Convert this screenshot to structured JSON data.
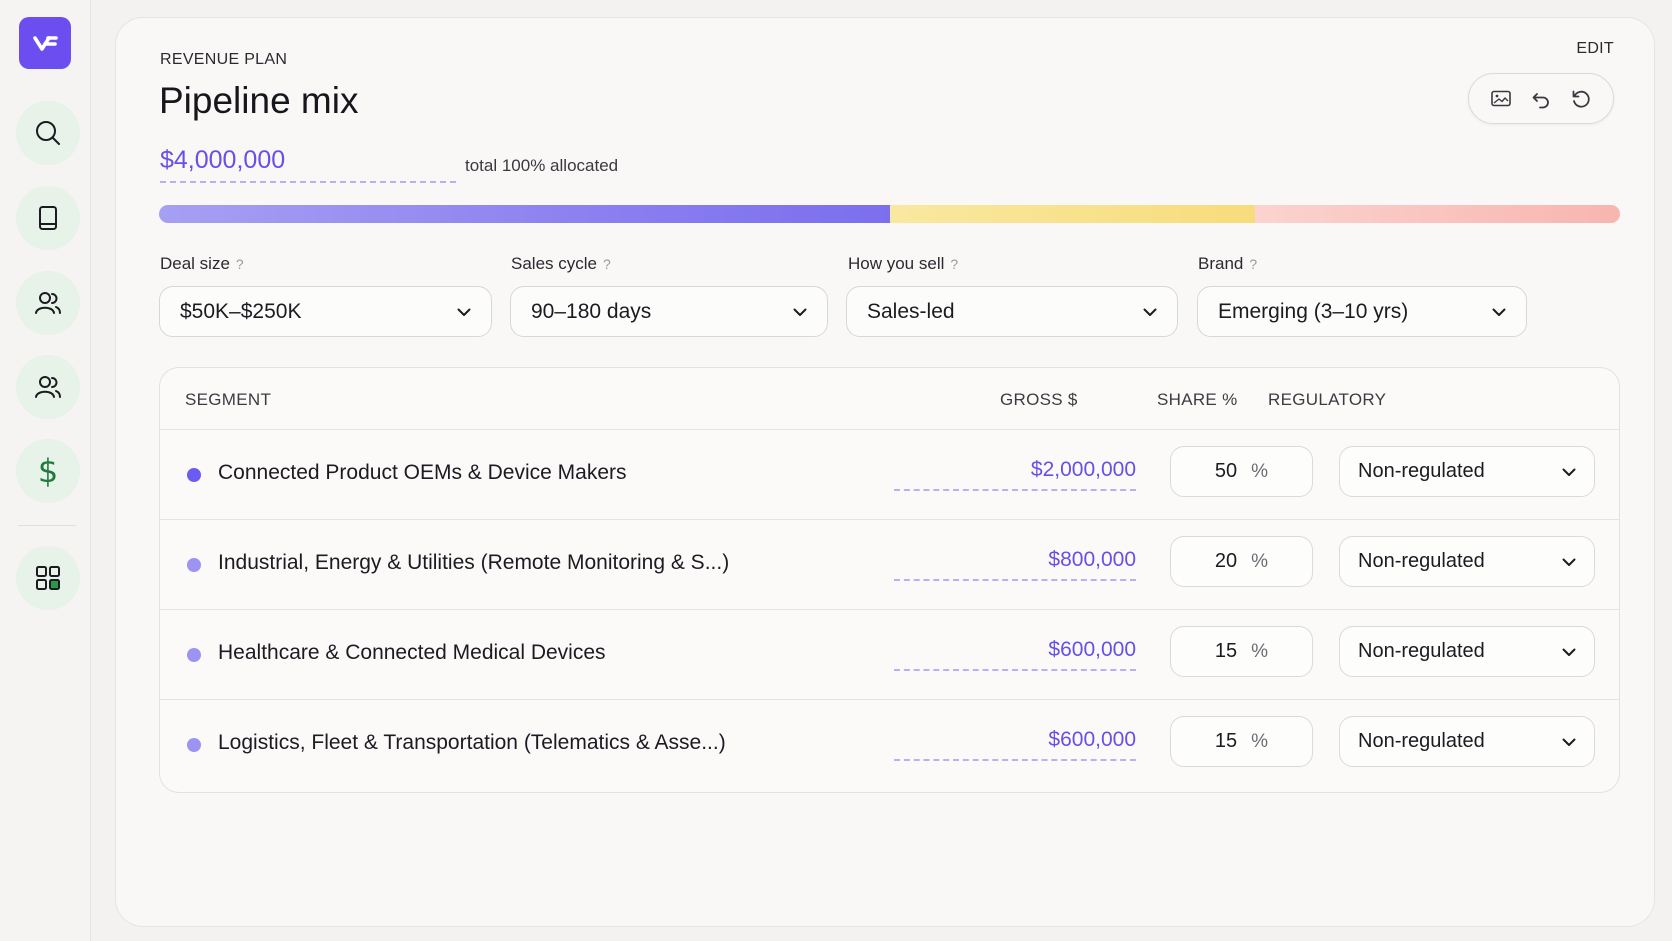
{
  "sidebar": {
    "logo_icon": "brand-logo-icon",
    "items": [
      {
        "name": "search",
        "icon": "search-icon"
      },
      {
        "name": "library",
        "icon": "book-icon"
      },
      {
        "name": "people",
        "icon": "users-icon"
      },
      {
        "name": "team",
        "icon": "users-icon"
      },
      {
        "name": "revenue",
        "icon": "dollar-icon",
        "glyph": "$"
      },
      {
        "name": "apps",
        "icon": "grid-icon"
      }
    ]
  },
  "header": {
    "eyebrow": "REVENUE PLAN",
    "title": "Pipeline mix",
    "edit_label": "EDIT"
  },
  "toolbar": {
    "items": [
      "image-icon",
      "undo-icon",
      "reset-icon"
    ]
  },
  "summary": {
    "total": "$4,000,000",
    "note": "total 100% allocated"
  },
  "allocation_bar": {
    "segments": [
      {
        "share": 0.5,
        "color": "#7b6fee"
      },
      {
        "share": 0.25,
        "color": "#f8dc7c"
      },
      {
        "share": 0.25,
        "color": "#f8b5b0"
      }
    ]
  },
  "filters": [
    {
      "label": "Deal size",
      "hint": "?",
      "value": "$50K–$250K"
    },
    {
      "label": "Sales cycle",
      "hint": "?",
      "value": "90–180 days"
    },
    {
      "label": "How you sell",
      "hint": "?",
      "value": "Sales-led"
    },
    {
      "label": "Brand",
      "hint": "?",
      "value": "Emerging (3–10 yrs)"
    }
  ],
  "table": {
    "headers": {
      "segment": "SEGMENT",
      "gross": "GROSS $",
      "share": "SHARE %",
      "regulatory": "REGULATORY"
    },
    "share_unit": "%",
    "rows": [
      {
        "segment": "Connected Product OEMs & Device Makers",
        "gross": "$2,000,000",
        "share": "50",
        "regulatory": "Non-regulated",
        "dot_color": "#6a5cf0"
      },
      {
        "segment": "Industrial, Energy & Utilities (Remote Monitoring & S...)",
        "gross": "$800,000",
        "share": "20",
        "regulatory": "Non-regulated",
        "dot_color": "#9d93f3"
      },
      {
        "segment": "Healthcare & Connected Medical Devices",
        "gross": "$600,000",
        "share": "15",
        "regulatory": "Non-regulated",
        "dot_color": "#9d93f3"
      },
      {
        "segment": "Logistics, Fleet & Transportation (Telematics & Asse...)",
        "gross": "$600,000",
        "share": "15",
        "regulatory": "Non-regulated",
        "dot_color": "#9d93f3"
      }
    ]
  },
  "colors": {
    "accent": "#6650e8",
    "brand": "#6b4df0",
    "nav_bg": "#e7f2e8"
  }
}
